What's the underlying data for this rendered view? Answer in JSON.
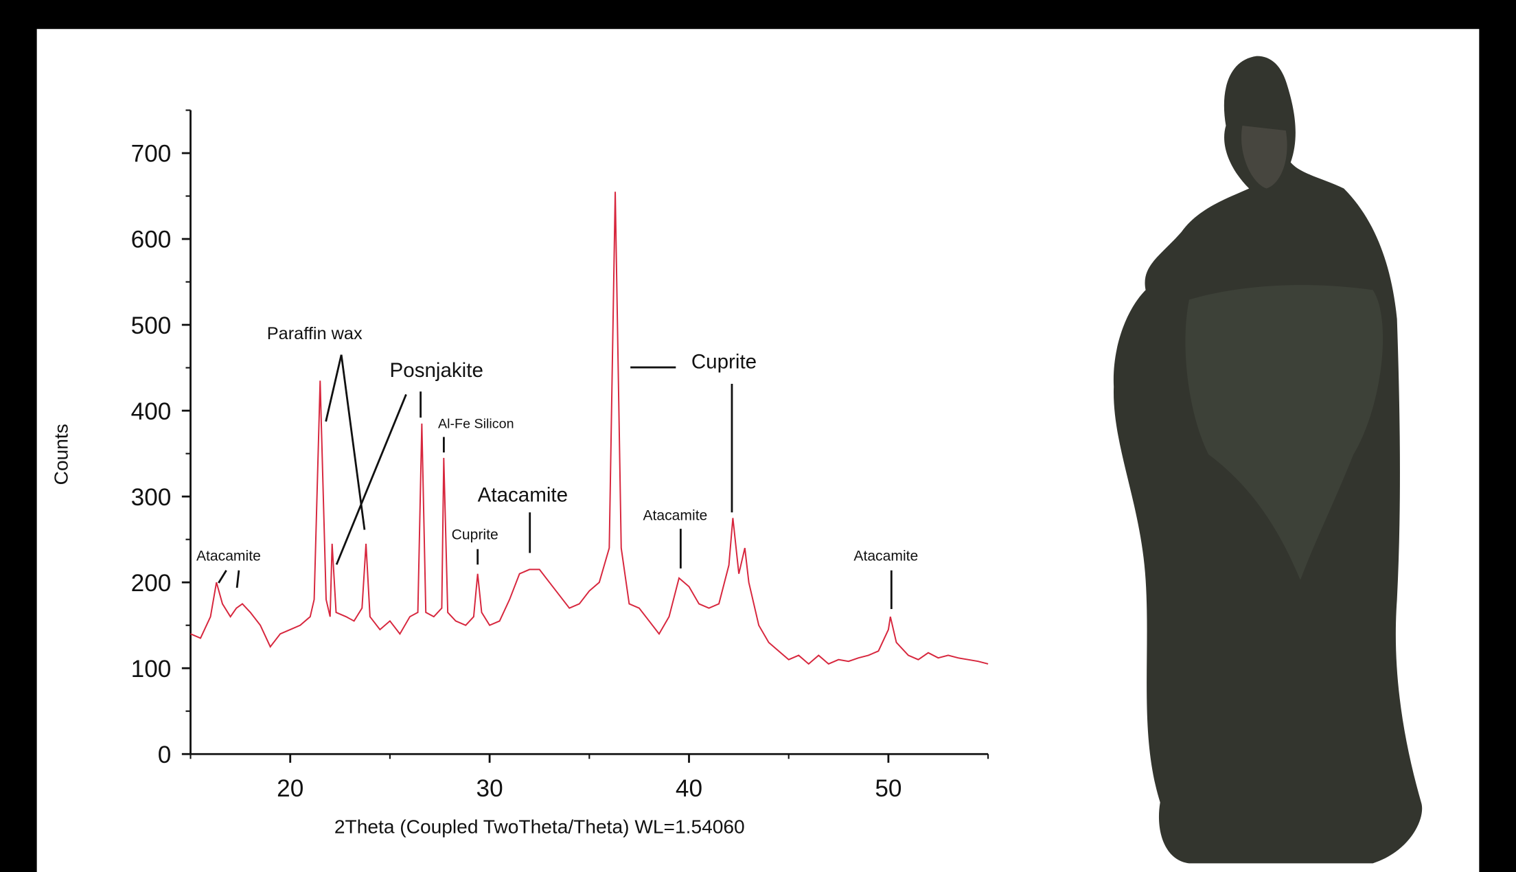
{
  "chart_data": {
    "type": "line",
    "x_label": "2Theta (Coupled TwoTheta/Theta) WL=1.54060",
    "y_label": "Counts",
    "x": [
      15,
      15.5,
      16,
      16.3,
      16.6,
      17,
      17.3,
      17.6,
      18,
      18.5,
      19,
      19.5,
      20,
      20.5,
      21,
      21.2,
      21.5,
      21.8,
      22,
      22.1,
      22.3,
      22.8,
      23.2,
      23.6,
      23.8,
      24,
      24.5,
      25,
      25.5,
      26,
      26.4,
      26.6,
      26.8,
      27.2,
      27.6,
      27.7,
      27.9,
      28.3,
      28.8,
      29.2,
      29.4,
      29.6,
      30,
      30.5,
      31,
      31.5,
      32,
      32.5,
      33,
      33.5,
      34,
      34.5,
      35,
      35.5,
      36,
      36.3,
      36.6,
      37,
      37.5,
      38,
      38.5,
      39,
      39.5,
      40,
      40.5,
      41,
      41.5,
      42,
      42.2,
      42.5,
      42.8,
      43,
      43.5,
      44,
      44.5,
      45,
      45.5,
      46,
      46.5,
      47,
      47.5,
      48,
      48.5,
      49,
      49.5,
      50,
      50.1,
      50.4,
      51,
      51.5,
      52,
      52.5,
      53,
      53.5,
      54,
      54.5,
      55
    ],
    "series": [
      {
        "color": "#d7263d",
        "values": [
          140,
          135,
          160,
          200,
          175,
          160,
          170,
          175,
          165,
          150,
          125,
          140,
          145,
          150,
          160,
          180,
          435,
          180,
          160,
          245,
          165,
          160,
          155,
          170,
          245,
          160,
          145,
          155,
          140,
          160,
          165,
          385,
          165,
          160,
          170,
          345,
          165,
          155,
          150,
          160,
          210,
          165,
          150,
          155,
          180,
          210,
          215,
          215,
          200,
          185,
          170,
          175,
          190,
          200,
          240,
          655,
          240,
          175,
          170,
          155,
          140,
          160,
          205,
          195,
          175,
          170,
          175,
          220,
          275,
          210,
          240,
          200,
          150,
          130,
          120,
          110,
          115,
          105,
          115,
          105,
          110,
          108,
          112,
          115,
          120,
          145,
          160,
          130,
          115,
          110,
          118,
          112,
          115,
          112,
          110,
          108,
          105
        ]
      }
    ],
    "xlim": [
      15,
      55
    ],
    "ylim": [
      0,
      750
    ],
    "xticks": [
      20,
      30,
      40,
      50
    ],
    "yticks": [
      0,
      100,
      200,
      300,
      400,
      500,
      600,
      700
    ],
    "xminorticks": [
      15,
      25,
      35,
      45,
      55
    ],
    "yminorticks": [
      50,
      150,
      250,
      350,
      450,
      550,
      650,
      750
    ],
    "annotations": [
      "Atacamite",
      "Paraffin wax",
      "Posnjakite",
      "Al-Fe Silicon",
      "Cuprite",
      "Atacamite",
      "Cuprite",
      "Atacamite",
      "Atacamite"
    ]
  }
}
